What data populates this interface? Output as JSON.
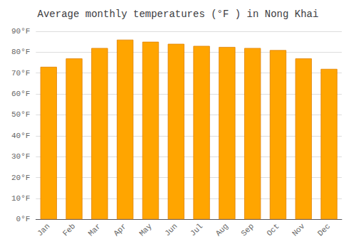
{
  "chart_data": {
    "type": "bar",
    "title": "Average monthly temperatures (°F ) in Nong Khai",
    "categories": [
      "Jan",
      "Feb",
      "Mar",
      "Apr",
      "May",
      "Jun",
      "Jul",
      "Aug",
      "Sep",
      "Oct",
      "Nov",
      "Dec"
    ],
    "values": [
      73,
      77,
      82,
      86,
      85,
      84,
      83,
      82.5,
      82,
      81,
      77,
      72
    ],
    "color": "#FFA500",
    "ylim": [
      0,
      90
    ],
    "yticks": [
      {
        "value": 0,
        "label": "0°F"
      },
      {
        "value": 10,
        "label": "10°F"
      },
      {
        "value": 20,
        "label": "20°F"
      },
      {
        "value": 30,
        "label": "30°F"
      },
      {
        "value": 40,
        "label": "40°F"
      },
      {
        "value": 50,
        "label": "50°F"
      },
      {
        "value": 60,
        "label": "60°F"
      },
      {
        "value": 70,
        "label": "70°F"
      },
      {
        "value": 80,
        "label": "80°F"
      },
      {
        "value": 90,
        "label": "90°F"
      }
    ],
    "grid": true
  }
}
